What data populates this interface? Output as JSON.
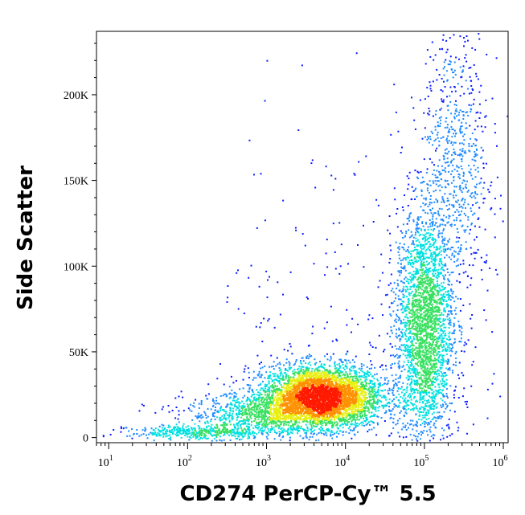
{
  "chart_data": {
    "type": "scatter",
    "style": "density-dot-plot",
    "xlabel": "CD274 PerCP-Cy™ 5.5",
    "ylabel": "Side Scatter",
    "x_scale": "log",
    "xlim": [
      7,
      1150000
    ],
    "ylim": [
      -3000,
      237000
    ],
    "x_ticks": [
      {
        "value": 10,
        "base": "10",
        "exp": "1"
      },
      {
        "value": 100,
        "base": "10",
        "exp": "2"
      },
      {
        "value": 1000,
        "base": "10",
        "exp": "3"
      },
      {
        "value": 10000,
        "base": "10",
        "exp": "4"
      },
      {
        "value": 100000,
        "base": "10",
        "exp": "5"
      },
      {
        "value": 1000000,
        "base": "10",
        "exp": "6"
      }
    ],
    "y_ticks": [
      {
        "value": 0,
        "label": "0"
      },
      {
        "value": 50000,
        "label": "50K"
      },
      {
        "value": 100000,
        "label": "100K"
      },
      {
        "value": 150000,
        "label": "150K"
      },
      {
        "value": 200000,
        "label": "200K"
      }
    ],
    "populations": [
      {
        "center_x": 5000,
        "center_y": 24000,
        "spread_logx": 0.38,
        "spread_y": 9000,
        "weight": 0.45
      },
      {
        "center_x": 1200,
        "center_y": 14000,
        "spread_logx": 0.55,
        "spread_y": 6000,
        "weight": 0.12
      },
      {
        "center_x": 100000,
        "center_y": 65000,
        "spread_logx": 0.18,
        "spread_y": 35000,
        "weight": 0.3
      },
      {
        "center_x": 250000,
        "center_y": 160000,
        "spread_logx": 0.22,
        "spread_y": 45000,
        "weight": 0.08
      },
      {
        "center_x": 150,
        "center_y": 3000,
        "spread_logx": 0.45,
        "spread_y": 2000,
        "weight": 0.05
      }
    ],
    "density_colors": [
      "#0a1cff",
      "#1f8bff",
      "#00e0e0",
      "#38e060",
      "#e8ee10",
      "#ff9000",
      "#ff1a00"
    ],
    "grid": false,
    "legend": "none"
  }
}
